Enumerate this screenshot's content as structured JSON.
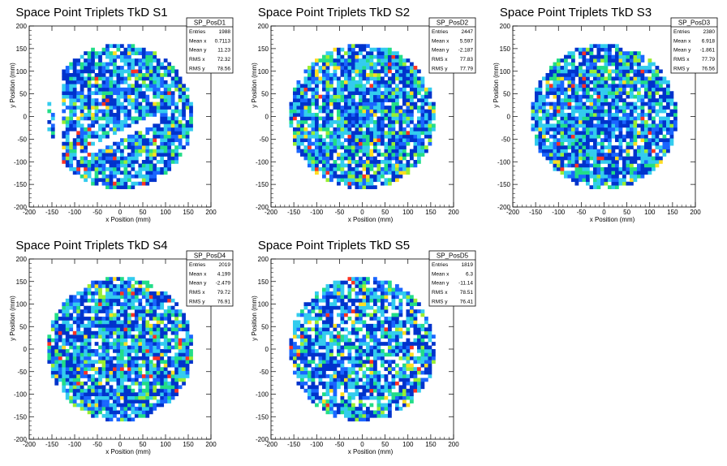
{
  "chart_data": [
    {
      "type": "heatmap",
      "title": "Space Point Triplets TkD S1",
      "xlabel": "x Position (mm)",
      "ylabel": "y Position (mm)",
      "xlim": [
        -200,
        200
      ],
      "ylim": [
        -200,
        200
      ],
      "xticks": [
        -200,
        -150,
        -100,
        -50,
        0,
        50,
        100,
        150,
        200
      ],
      "yticks": [
        -200,
        -150,
        -100,
        -50,
        0,
        50,
        100,
        150,
        200
      ],
      "stats": {
        "name": "SP_PosD1",
        "rows": [
          [
            "Entries",
            "1988"
          ],
          [
            "Mean x",
            "0.7113"
          ],
          [
            "Mean y",
            "11.23"
          ],
          [
            "RMS x",
            "72.32"
          ],
          [
            "RMS y",
            "78.56"
          ]
        ]
      },
      "footprint": {
        "shape": "disk",
        "radius_mm": 160,
        "gaps": [
          "x < -150 region sparse",
          "diagonal empty band from (-60,-70) to (80,-5)"
        ]
      }
    },
    {
      "type": "heatmap",
      "title": "Space Point Triplets TkD S2",
      "xlabel": "x Position (mm)",
      "ylabel": "y Position (mm)",
      "xlim": [
        -200,
        200
      ],
      "ylim": [
        -200,
        200
      ],
      "xticks": [
        -200,
        -150,
        -100,
        -50,
        0,
        50,
        100,
        150,
        200
      ],
      "yticks": [
        -200,
        -150,
        -100,
        -50,
        0,
        50,
        100,
        150,
        200
      ],
      "stats": {
        "name": "SP_PosD2",
        "rows": [
          [
            "Entries",
            "2447"
          ],
          [
            "Mean x",
            "5.597"
          ],
          [
            "Mean y",
            "-2.187"
          ],
          [
            "RMS x",
            "77.83"
          ],
          [
            "RMS y",
            "77.79"
          ]
        ]
      },
      "footprint": {
        "shape": "disk",
        "radius_mm": 160
      }
    },
    {
      "type": "heatmap",
      "title": "Space Point Triplets TkD S3",
      "xlabel": "x Position (mm)",
      "ylabel": "y Position (mm)",
      "xlim": [
        -200,
        200
      ],
      "ylim": [
        -200,
        200
      ],
      "xticks": [
        -200,
        -150,
        -100,
        -50,
        0,
        50,
        100,
        150,
        200
      ],
      "yticks": [
        -200,
        -150,
        -100,
        -50,
        0,
        50,
        100,
        150,
        200
      ],
      "stats": {
        "name": "SP_PosD3",
        "rows": [
          [
            "Entries",
            "2380"
          ],
          [
            "Mean x",
            "6.918"
          ],
          [
            "Mean y",
            "-1.861"
          ],
          [
            "RMS x",
            "77.79"
          ],
          [
            "RMS y",
            "76.56"
          ]
        ]
      },
      "footprint": {
        "shape": "disk",
        "radius_mm": 160
      }
    },
    {
      "type": "heatmap",
      "title": "Space Point Triplets TkD S4",
      "xlabel": "x Position (mm)",
      "ylabel": "y Position (mm)",
      "xlim": [
        -200,
        200
      ],
      "ylim": [
        -200,
        200
      ],
      "xticks": [
        -200,
        -150,
        -100,
        -50,
        0,
        50,
        100,
        150,
        200
      ],
      "yticks": [
        -200,
        -150,
        -100,
        -50,
        0,
        50,
        100,
        150,
        200
      ],
      "stats": {
        "name": "SP_PosD4",
        "rows": [
          [
            "Entries",
            "2019"
          ],
          [
            "Mean x",
            "4.199"
          ],
          [
            "Mean y",
            "-2.479"
          ],
          [
            "RMS x",
            "79.72"
          ],
          [
            "RMS y",
            "76.91"
          ]
        ]
      },
      "footprint": {
        "shape": "disk",
        "radius_mm": 160
      }
    },
    {
      "type": "heatmap",
      "title": "Space Point Triplets TkD S5",
      "xlabel": "x Position (mm)",
      "ylabel": "y Position (mm)",
      "xlim": [
        -200,
        200
      ],
      "ylim": [
        -200,
        200
      ],
      "xticks": [
        -200,
        -150,
        -100,
        -50,
        0,
        50,
        100,
        150,
        200
      ],
      "yticks": [
        -200,
        -150,
        -100,
        -50,
        0,
        50,
        100,
        150,
        200
      ],
      "stats": {
        "name": "SP_PosD5",
        "rows": [
          [
            "Entries",
            "1819"
          ],
          [
            "Mean x",
            "6.3"
          ],
          [
            "Mean y",
            "-11.14"
          ],
          [
            "RMS x",
            "78.51"
          ],
          [
            "RMS y",
            "76.41"
          ]
        ]
      },
      "footprint": {
        "shape": "disk",
        "radius_mm": 160
      }
    }
  ],
  "palette": [
    "#0033cc",
    "#1a66ff",
    "#33ccee",
    "#22dd88",
    "#99ee33",
    "#ffdd22",
    "#ff3322"
  ]
}
